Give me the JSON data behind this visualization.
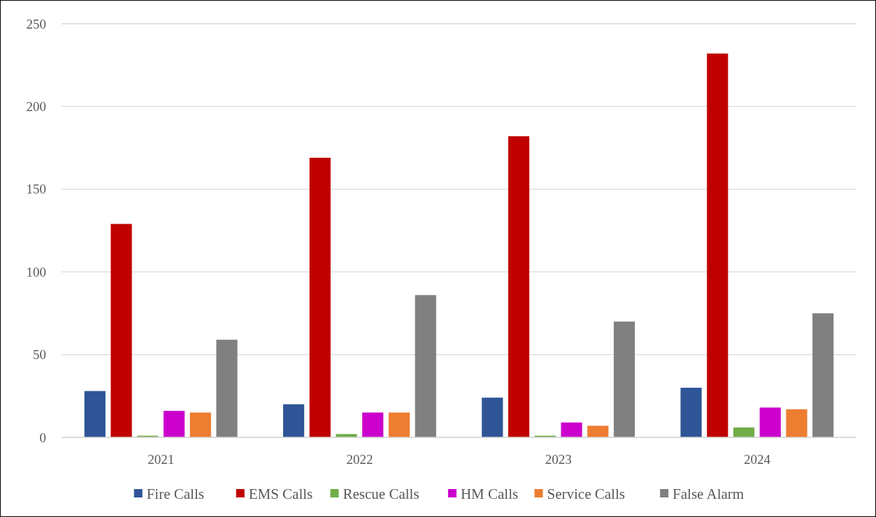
{
  "chart_data": {
    "type": "bar",
    "categories": [
      "2021",
      "2022",
      "2023",
      "2024"
    ],
    "series": [
      {
        "name": "Fire Calls",
        "color": "#2f5597",
        "values": [
          28,
          20,
          24,
          30
        ]
      },
      {
        "name": "EMS Calls",
        "color": "#c00000",
        "values": [
          129,
          169,
          182,
          232
        ]
      },
      {
        "name": "Rescue Calls",
        "color": "#70ad47",
        "values": [
          1,
          2,
          1,
          6
        ]
      },
      {
        "name": "HM Calls",
        "color": "#cc00cc",
        "values": [
          16,
          15,
          9,
          18
        ]
      },
      {
        "name": "Service Calls",
        "color": "#ed7d31",
        "values": [
          15,
          15,
          7,
          17
        ]
      },
      {
        "name": "False Alarm",
        "color": "#808080",
        "values": [
          59,
          86,
          70,
          75
        ]
      }
    ],
    "ylim": [
      0,
      250
    ],
    "yticks": [
      0,
      50,
      100,
      150,
      200,
      250
    ],
    "grid": "y",
    "legend": "bottom"
  }
}
